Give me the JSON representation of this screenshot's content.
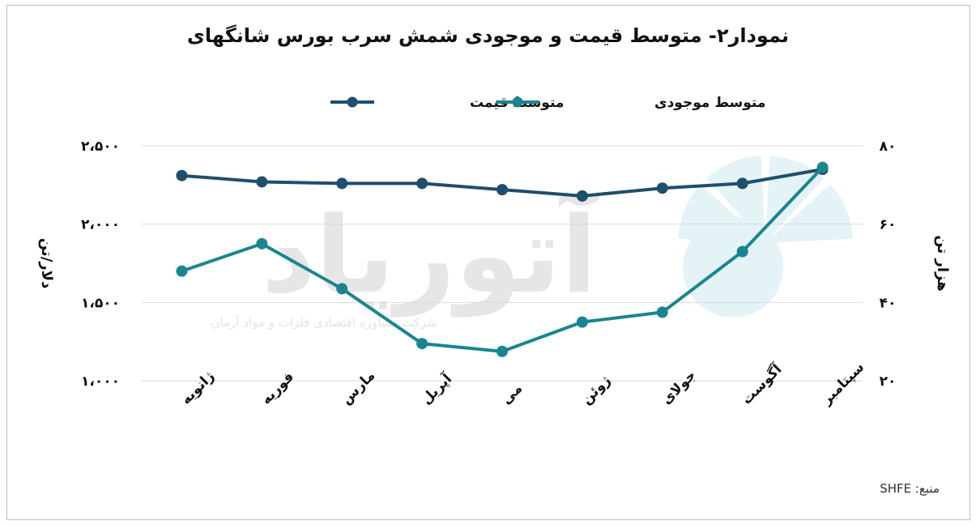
{
  "title": "نمودار۲- متوسط قیمت و موجودی شمش سرب بورس شانگهای",
  "source": "منبع: SHFE",
  "watermark": {
    "logo_text": "آتوریاد",
    "tagline": "شرکت مشاوره اقتصادی فلزات و مواد آرمان"
  },
  "colors": {
    "price": "#1f4e6e",
    "inventory": "#1a8591",
    "grid": "#d9d9d9"
  },
  "chart_data": {
    "type": "line",
    "title": "نمودار۲- متوسط قیمت و موجودی شمش سرب بورس شانگهای",
    "categories": [
      "ژانویه",
      "فوریه",
      "مارس",
      "آپریل",
      "می",
      "ژوئن",
      "جولای",
      "آگوست",
      "سپتامبر"
    ],
    "series": [
      {
        "name": "متوسط قیمت",
        "axis": "left",
        "values": [
          2310,
          2270,
          2260,
          2260,
          2220,
          2180,
          2230,
          2260,
          2350
        ]
      },
      {
        "name": "متوسط موجودی",
        "axis": "right",
        "values": [
          48,
          55,
          43.5,
          29.5,
          27.5,
          35,
          37.5,
          53,
          74.5
        ]
      }
    ],
    "y_left": {
      "label": "دلار/تن",
      "range": [
        1000,
        2500
      ],
      "ticks": [
        "۱،۰۰۰",
        "۱،۵۰۰",
        "۲،۰۰۰",
        "۲،۵۰۰"
      ]
    },
    "y_right": {
      "label": "هزار تن",
      "range": [
        20,
        80
      ],
      "ticks": [
        "۲۰",
        "۴۰",
        "۶۰",
        "۸۰"
      ]
    },
    "legend_position": "top-center",
    "grid": "horizontal"
  }
}
